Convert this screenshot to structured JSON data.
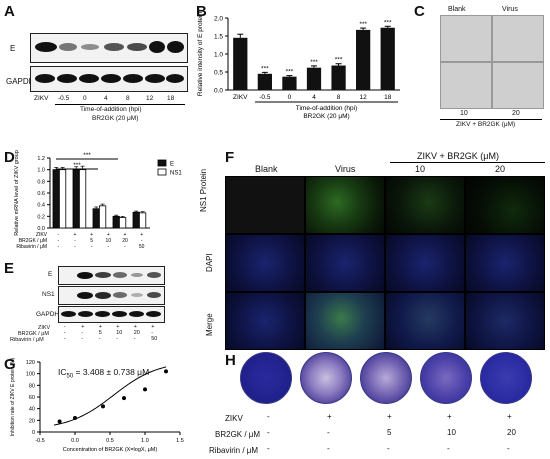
{
  "panels": {
    "A": {
      "label": "A",
      "rows": [
        "E",
        "GAPDH"
      ],
      "x_prefix": "ZIKV",
      "times": [
        "-0.5",
        "0",
        "4",
        "8",
        "12",
        "18"
      ],
      "xlabel_line1": "Time-of-addition (hpi)",
      "xlabel_line2": "BR2GK (20 μM)"
    },
    "B": {
      "label": "B"
    },
    "C": {
      "label": "C",
      "top_labels": [
        "Blank",
        "Virus"
      ],
      "bottom_values": [
        "10",
        "20"
      ],
      "caption": "ZIKV + BR2GK (μM)"
    },
    "D": {
      "label": "D"
    },
    "E": {
      "label": "E",
      "rows": [
        "E",
        "NS1",
        "GAPDH"
      ],
      "row_labels": [
        "ZIKV",
        "BR2GK / μM",
        "Ribavirin / μM"
      ],
      "cols": [
        [
          "-",
          "-",
          "-"
        ],
        [
          "+",
          "-",
          "-"
        ],
        [
          "+",
          "5",
          "-"
        ],
        [
          "+",
          "10",
          "-"
        ],
        [
          "+",
          "20",
          "-"
        ],
        [
          "+",
          "-",
          "50"
        ]
      ]
    },
    "F": {
      "label": "F",
      "col_headers": [
        "Blank",
        "Virus"
      ],
      "group_header": "ZIKV + BR2GK (μM)",
      "group_values": [
        "10",
        "20"
      ],
      "row_labels": [
        "NS1 Protein",
        "DAPI",
        "Merge"
      ]
    },
    "G": {
      "label": "G",
      "annotation": "IC",
      "annotation_sub": "50",
      "annotation_rest": " = 3.408 ± 0.738 μM"
    },
    "H": {
      "label": "H",
      "row_labels": [
        "ZIKV",
        "BR2GK / μM",
        "Ribavirin / μM"
      ],
      "cols": [
        [
          "-",
          "-",
          "-"
        ],
        [
          "+",
          "-",
          "-"
        ],
        [
          "+",
          "5",
          "-"
        ],
        [
          "+",
          "10",
          "-"
        ],
        [
          "+",
          "20",
          "-"
        ],
        [
          "+",
          "-",
          "50"
        ]
      ]
    }
  },
  "chart_data": [
    {
      "id": "B",
      "type": "bar",
      "ylabel": "Relative intensity of E protein",
      "categories": [
        "ZIKV",
        "-0.5",
        "0",
        "4",
        "8",
        "12",
        "18"
      ],
      "values": [
        1.45,
        0.45,
        0.37,
        0.62,
        0.68,
        1.67,
        1.73
      ],
      "errors": [
        0.1,
        0.04,
        0.03,
        0.05,
        0.05,
        0.05,
        0.04
      ],
      "significance": [
        "",
        "***",
        "***",
        "***",
        "***",
        "***",
        "***"
      ],
      "yticks": [
        "0.0",
        "0.5",
        "1.0",
        "1.5",
        "2.0"
      ],
      "ylim": [
        0,
        2.0
      ],
      "xlabel_line1": "Time-of-addition (hpi)",
      "xlabel_line2": "BR2GK (20 μM)",
      "colors": {
        "bar": "#111111"
      }
    },
    {
      "id": "D",
      "type": "bar",
      "ylabel": "Relative mRNA level of ZIKV group",
      "series": [
        {
          "name": "E",
          "values": [
            1.0,
            1.0,
            0.33,
            0.2,
            0.27
          ],
          "errors": [
            0.04,
            0.05,
            0.03,
            0.02,
            0.02
          ]
        },
        {
          "name": "NS1",
          "values": [
            1.0,
            1.0,
            0.38,
            0.18,
            0.26
          ],
          "errors": [
            0.04,
            0.06,
            0.03,
            0.02,
            0.02
          ]
        }
      ],
      "groups": 5,
      "yticks": [
        "0.0",
        "0.2",
        "0.4",
        "0.6",
        "0.8",
        "1.0",
        "1.2"
      ],
      "ylim": [
        0,
        1.2
      ],
      "significance": "***",
      "table_rows": [
        "ZIKV",
        "BR2GK / μM",
        "Ribavirin / μM"
      ],
      "table_cols": [
        [
          "-",
          "-",
          "-"
        ],
        [
          "+",
          "-",
          "-"
        ],
        [
          "+",
          "5",
          "-"
        ],
        [
          "+",
          "10",
          "-"
        ],
        [
          "+",
          "20",
          "-"
        ],
        [
          "+",
          "-",
          "50"
        ]
      ],
      "colors": {
        "E": "#111111",
        "NS1": "#ffffff"
      }
    },
    {
      "id": "G",
      "type": "scatter",
      "xlabel": "Concentration of BR2GK (X=logX, μM)",
      "ylabel": "Inhibition rate of ZIKV E protein (%)",
      "points": [
        [
          -0.22,
          18
        ],
        [
          0.0,
          24
        ],
        [
          0.4,
          44
        ],
        [
          0.7,
          58
        ],
        [
          1.0,
          73
        ],
        [
          1.3,
          104
        ]
      ],
      "curve_label": "",
      "xticks": [
        "-0.5",
        "0.0",
        "0.5",
        "1.0",
        "1.5"
      ],
      "xlim": [
        -0.5,
        1.5
      ],
      "yticks": [
        "0",
        "20",
        "40",
        "60",
        "80",
        "100",
        "120"
      ],
      "ylim": [
        0,
        120
      ]
    }
  ]
}
